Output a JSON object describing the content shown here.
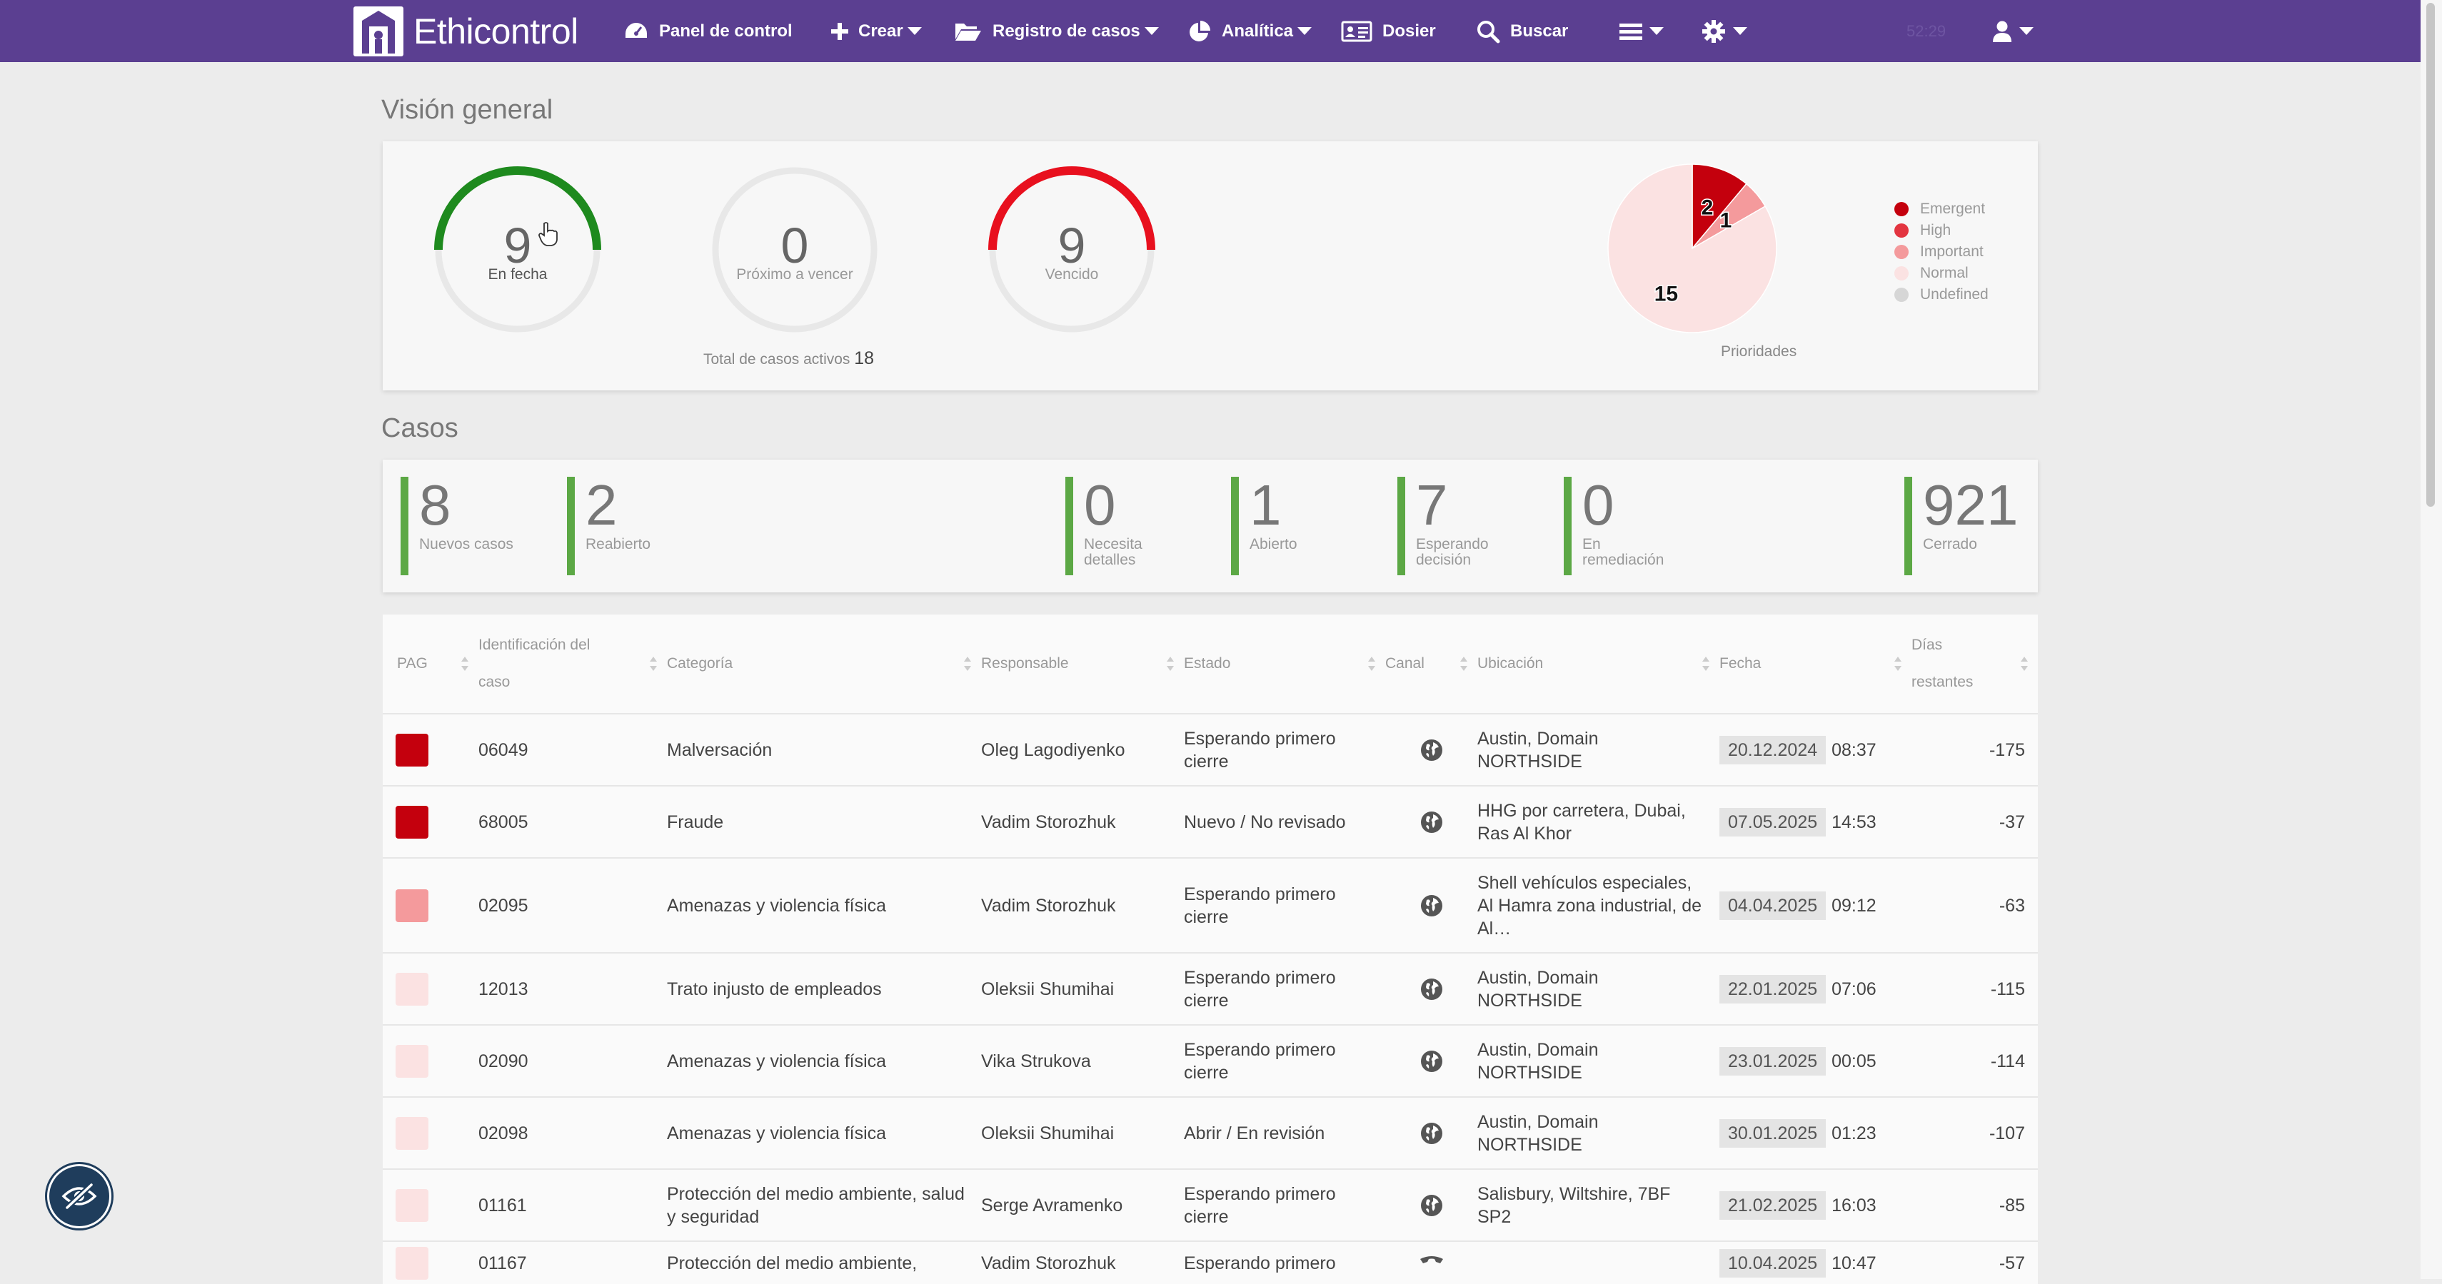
{
  "nav": {
    "brand": "Ethicontrol",
    "items": [
      {
        "label": "Panel de control",
        "icon": "dashboard-icon"
      },
      {
        "label": "Crear",
        "icon": "plus-icon"
      },
      {
        "label": "Registro de casos",
        "icon": "folder-open-icon"
      },
      {
        "label": "Analítica",
        "icon": "pie-chart-icon"
      },
      {
        "label": "Dosier",
        "icon": "id-card-icon"
      },
      {
        "label": "Buscar",
        "icon": "search-icon"
      }
    ],
    "time": "52:29",
    "bar_color": "#5b3f91"
  },
  "overview": {
    "title": "Visión general",
    "gauges": [
      {
        "value": "9",
        "label": "En fecha",
        "color": "#1e8a1e",
        "fraction": 0.5
      },
      {
        "value": "0",
        "label": "Próximo a vencer",
        "color": "#e0e0e0",
        "fraction": 0
      },
      {
        "value": "9",
        "label": "Vencido",
        "color": "#e8101e",
        "fraction": 0.5
      }
    ],
    "total_label": "Total de casos activos",
    "total_value": "18",
    "pie_caption": "Prioridades",
    "pie": [
      {
        "name": "Emergent",
        "value": 2,
        "color": "#c4000d"
      },
      {
        "name": "High",
        "value": 0,
        "color": "#e33540"
      },
      {
        "name": "Important",
        "value": 1,
        "color": "#f49a9c"
      },
      {
        "name": "Normal",
        "value": 15,
        "color": "#fbe2e2"
      },
      {
        "name": "Undefined",
        "value": 0,
        "color": "#d6d6d6"
      }
    ]
  },
  "cases": {
    "title": "Casos",
    "stats": [
      {
        "value": "8",
        "label": "Nuevos casos"
      },
      {
        "value": "2",
        "label": "Reabierto"
      },
      {
        "value": "0",
        "label": "Necesita detalles"
      },
      {
        "value": "1",
        "label": "Abierto"
      },
      {
        "value": "7",
        "label": "Esperando decisión"
      },
      {
        "value": "0",
        "label": "En remediación"
      },
      {
        "value": "921",
        "label": "Cerrado"
      }
    ]
  },
  "table": {
    "columns": [
      "PAG",
      "Identificación del caso",
      "Categoría",
      "Responsable",
      "Estado",
      "Canal",
      "Ubicación",
      "Fecha",
      "Días restantes"
    ],
    "rows": [
      {
        "prio": "#c4000d",
        "id": "06049",
        "category": "Malversación",
        "owner": "Oleg Lagodiyenko",
        "status": "Esperando primero cierre",
        "channel": "globe-icon",
        "location": "Austin, Domain NORTHSIDE",
        "date": "20.12.2024",
        "time": "08:37",
        "days": "-175"
      },
      {
        "prio": "#c4000d",
        "id": "68005",
        "category": "Fraude",
        "owner": "Vadim Storozhuk",
        "status": "Nuevo / No revisado",
        "channel": "globe-icon",
        "location": "HHG por carretera, Dubai, Ras Al Khor",
        "date": "07.05.2025",
        "time": "14:53",
        "days": "-37"
      },
      {
        "prio": "#f49a9c",
        "id": "02095",
        "category": "Amenazas y violencia física",
        "owner": "Vadim Storozhuk",
        "status": "Esperando primero cierre",
        "channel": "globe-icon",
        "location": "Shell vehículos especiales, Al Hamra zona industrial, de Al…",
        "date": "04.04.2025",
        "time": "09:12",
        "days": "-63"
      },
      {
        "prio": "#fbe2e2",
        "id": "12013",
        "category": "Trato injusto de empleados",
        "owner": "Oleksii Shumihai",
        "status": "Esperando primero cierre",
        "channel": "globe-icon",
        "location": "Austin, Domain NORTHSIDE",
        "date": "22.01.2025",
        "time": "07:06",
        "days": "-115"
      },
      {
        "prio": "#fbe2e2",
        "id": "02090",
        "category": "Amenazas y violencia física",
        "owner": "Vika Strukova",
        "status": "Esperando primero cierre",
        "channel": "globe-icon",
        "location": "Austin, Domain NORTHSIDE",
        "date": "23.01.2025",
        "time": "00:05",
        "days": "-114"
      },
      {
        "prio": "#fbe2e2",
        "id": "02098",
        "category": "Amenazas y violencia física",
        "owner": "Oleksii Shumihai",
        "status": "Abrir / En revisión",
        "channel": "globe-icon",
        "location": "Austin, Domain NORTHSIDE",
        "date": "30.01.2025",
        "time": "01:23",
        "days": "-107"
      },
      {
        "prio": "#fbe2e2",
        "id": "01161",
        "category": "Protección del medio ambiente, salud y seguridad",
        "owner": "Serge Avramenko",
        "status": "Esperando primero cierre",
        "channel": "globe-icon",
        "location": "Salisbury, Wiltshire, 7BF SP2",
        "date": "21.02.2025",
        "time": "16:03",
        "days": "-85"
      },
      {
        "prio": "#fbe2e2",
        "id": "01167",
        "category": "Protección del medio ambiente,",
        "owner": "Vadim Storozhuk",
        "status": "Esperando primero",
        "channel": "phone-icon",
        "location": "",
        "date": "10.04.2025",
        "time": "10:47",
        "days": "-57"
      }
    ]
  },
  "fab_icon": "eye-slash-icon"
}
